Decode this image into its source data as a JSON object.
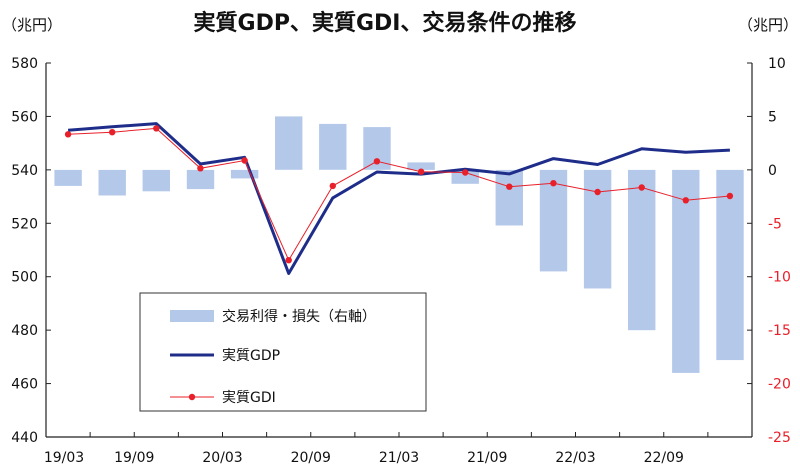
{
  "chart_data": {
    "type": "bar",
    "title": "実質GDP、実質GDI、交易条件の推移",
    "left_unit": "（兆円）",
    "right_unit": "（兆円）",
    "x": [
      "19/03",
      "19/06",
      "19/09",
      "19/12",
      "20/03",
      "20/06",
      "20/09",
      "20/12",
      "21/03",
      "21/06",
      "21/09",
      "21/12",
      "22/03",
      "22/06",
      "22/09",
      "22/12"
    ],
    "x_tick_labels": [
      "19/03",
      "19/09",
      "20/03",
      "20/09",
      "21/03",
      "21/09",
      "22/03",
      "22/09"
    ],
    "y_left": {
      "range": [
        440,
        580
      ],
      "ticks": [
        440,
        460,
        480,
        500,
        520,
        540,
        560,
        580
      ]
    },
    "y_right": {
      "range": [
        -25,
        10
      ],
      "ticks": [
        -25,
        -20,
        -15,
        -10,
        -5,
        0,
        5,
        10
      ],
      "negative_tick_color": "#e8202a"
    },
    "grid": false,
    "legend_position": "bottom-left",
    "series": [
      {
        "name": "交易利得・損失（右軸）",
        "kind": "bar",
        "axis": "right",
        "color": "#b4c8ea",
        "values": [
          -1.5,
          -2.4,
          -2.0,
          -1.8,
          -0.8,
          5.0,
          4.3,
          4.0,
          0.7,
          -1.3,
          -5.2,
          -9.5,
          -11.1,
          -15.0,
          -19.0,
          -17.8
        ]
      },
      {
        "name": "実質GDP",
        "kind": "line",
        "axis": "left",
        "color": "#1f2d8a",
        "values": [
          554.8,
          556.1,
          557.3,
          542.2,
          544.7,
          501.2,
          529.5,
          539.2,
          538.4,
          540.2,
          538.5,
          544.2,
          542.0,
          547.9,
          546.6,
          547.4
        ]
      },
      {
        "name": "実質GDI",
        "kind": "line-marker",
        "axis": "left",
        "color": "#e8202a",
        "values": [
          553.3,
          554.1,
          555.5,
          540.6,
          543.5,
          506.2,
          534.0,
          543.2,
          539.3,
          539.0,
          533.7,
          535.0,
          531.7,
          533.4,
          528.6,
          530.2
        ]
      }
    ]
  }
}
